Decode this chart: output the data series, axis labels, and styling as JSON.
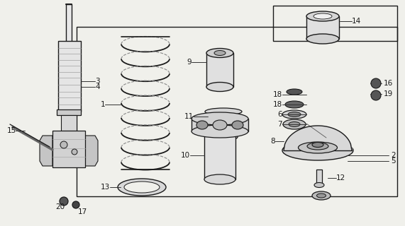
{
  "bg_color": "#f0f0eb",
  "line_color": "#1a1a1a",
  "fig_w": 5.71,
  "fig_h": 3.2,
  "dpi": 100
}
